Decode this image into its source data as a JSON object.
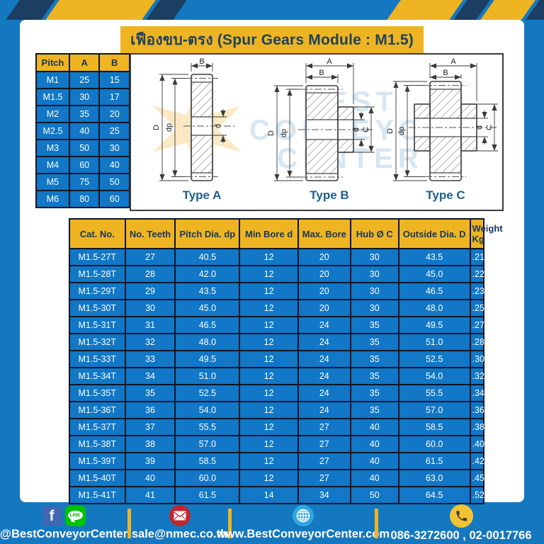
{
  "header": {
    "title": "เฟืองขบ-ตรง (Spur Gears Module : M1.5)"
  },
  "pitch_table": {
    "headers": [
      "Pitch",
      "A",
      "B"
    ],
    "rows": [
      [
        "M1",
        "25",
        "15"
      ],
      [
        "M1.5",
        "30",
        "17"
      ],
      [
        "M2",
        "35",
        "20"
      ],
      [
        "M2.5",
        "40",
        "25"
      ],
      [
        "M3",
        "50",
        "30"
      ],
      [
        "M4",
        "60",
        "40"
      ],
      [
        "M5",
        "75",
        "50"
      ],
      [
        "M6",
        "80",
        "60"
      ]
    ]
  },
  "diagrams": {
    "watermark": {
      "line1": "BEST",
      "line2": "CONVEYOR",
      "line3": "CENTER"
    },
    "types": [
      {
        "label": "Type A"
      },
      {
        "label": "Type B"
      },
      {
        "label": "Type C"
      }
    ],
    "dims": {
      "A": "A",
      "B": "B",
      "D": "D",
      "dp": "dp",
      "d": "d",
      "C": "C"
    }
  },
  "spec_table": {
    "headers": [
      "Cat. No.",
      "No. Teeth",
      "Pitch Dia. dp",
      "Min Bore d",
      "Max. Bore",
      "Hub Ø C",
      "Outside Dia. D",
      "Weight Kg"
    ],
    "rows": [
      [
        "M1.5-27T",
        "27",
        "40.5",
        "12",
        "20",
        "30",
        "43.5",
        ".21"
      ],
      [
        "M1.5-28T",
        "28",
        "42.0",
        "12",
        "20",
        "30",
        "45.0",
        ".22"
      ],
      [
        "M1.5-29T",
        "29",
        "43.5",
        "12",
        "20",
        "30",
        "46.5",
        ".23"
      ],
      [
        "M1.5-30T",
        "30",
        "45.0",
        "12",
        "20",
        "30",
        "48.0",
        ".25"
      ],
      [
        "M1.5-31T",
        "31",
        "46.5",
        "12",
        "24",
        "35",
        "49.5",
        ".27"
      ],
      [
        "M1.5-32T",
        "32",
        "48.0",
        "12",
        "24",
        "35",
        "51.0",
        ".28"
      ],
      [
        "M1.5-33T",
        "33",
        "49.5",
        "12",
        "24",
        "35",
        "52.5",
        ".30"
      ],
      [
        "M1.5-34T",
        "34",
        "51.0",
        "12",
        "24",
        "35",
        "54.0",
        ".32"
      ],
      [
        "M1.5-35T",
        "35",
        "52.5",
        "12",
        "24",
        "35",
        "55.5",
        ".34"
      ],
      [
        "M1.5-36T",
        "36",
        "54.0",
        "12",
        "24",
        "35",
        "57.0",
        ".36"
      ],
      [
        "M1.5-37T",
        "37",
        "55.5",
        "12",
        "27",
        "40",
        "58.5",
        ".38"
      ],
      [
        "M1.5-38T",
        "38",
        "57.0",
        "12",
        "27",
        "40",
        "60.0",
        ".40"
      ],
      [
        "M1.5-39T",
        "39",
        "58.5",
        "12",
        "27",
        "40",
        "61.5",
        ".42"
      ],
      [
        "M1.5-40T",
        "40",
        "60.0",
        "12",
        "27",
        "40",
        "63.0",
        ".45"
      ],
      [
        "M1.5-41T",
        "41",
        "61.5",
        "14",
        "34",
        "50",
        "64.5",
        ".52"
      ]
    ]
  },
  "footer": {
    "social_label": "@BestConveyorCenter",
    "facebook_letter": "f",
    "line_icon_text": "LINE",
    "email": "sale@nmec.co.th",
    "website": "www.BestConveyorCenter.com",
    "phone": "086-3272600 , 02-0017766"
  },
  "colors": {
    "blue": "#1478c0",
    "yellow": "#eeb421",
    "navy": "#1d3e63",
    "cell_blue": "#1177c6",
    "facebook_blue": "#4267b2",
    "line_green": "#00c300",
    "mail_red": "#c0272d",
    "globe_blue": "#2fa7e0",
    "phone_yellow": "#f1c232"
  }
}
